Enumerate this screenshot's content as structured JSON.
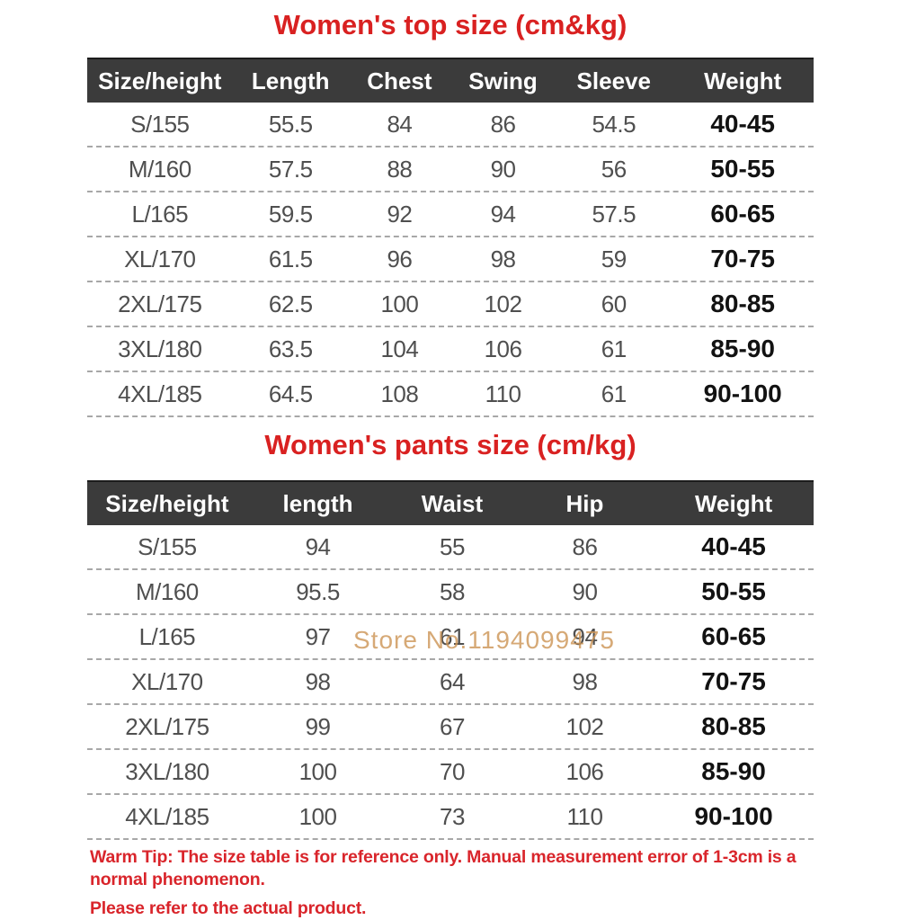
{
  "colors": {
    "title_red": "#d92121",
    "header_bg": "#3b3b3b",
    "header_text": "#ffffff",
    "data_text": "#4f4f4f",
    "weight_text": "#121212",
    "divider_gray": "#a8a8a8",
    "watermark_tan": "#cc9354",
    "warning_red": "#d9252b",
    "background": "#ffffff"
  },
  "tables": [
    {
      "title": "Women's top size (cm&kg)",
      "columns": [
        "Size/height",
        "Length",
        "Chest",
        "Swing",
        "Sleeve",
        "Weight"
      ],
      "rows": [
        [
          "S/155",
          "55.5",
          "84",
          "86",
          "54.5",
          "40-45"
        ],
        [
          "M/160",
          "57.5",
          "88",
          "90",
          "56",
          "50-55"
        ],
        [
          "L/165",
          "59.5",
          "92",
          "94",
          "57.5",
          "60-65"
        ],
        [
          "XL/170",
          "61.5",
          "96",
          "98",
          "59",
          "70-75"
        ],
        [
          "2XL/175",
          "62.5",
          "100",
          "102",
          "60",
          "80-85"
        ],
        [
          "3XL/180",
          "63.5",
          "104",
          "106",
          "61",
          "85-90"
        ],
        [
          "4XL/185",
          "64.5",
          "108",
          "110",
          "61",
          "90-100"
        ]
      ]
    },
    {
      "title": "Women's pants size (cm/kg)",
      "columns": [
        "Size/height",
        "length",
        "Waist",
        "Hip",
        "Weight"
      ],
      "rows": [
        [
          "S/155",
          "94",
          "55",
          "86",
          "40-45"
        ],
        [
          "M/160",
          "95.5",
          "58",
          "90",
          "50-55"
        ],
        [
          "L/165",
          "97",
          "61",
          "94",
          "60-65"
        ],
        [
          "XL/170",
          "98",
          "64",
          "98",
          "70-75"
        ],
        [
          "2XL/175",
          "99",
          "67",
          "102",
          "80-85"
        ],
        [
          "3XL/180",
          "100",
          "70",
          "106",
          "85-90"
        ],
        [
          "4XL/185",
          "100",
          "73",
          "110",
          "90-100"
        ]
      ]
    }
  ],
  "watermark": {
    "text": "Store No.1194099475"
  },
  "warning": {
    "line1": "Warm Tip: The size table is for reference only. Manual measurement error of 1-3cm is a normal phenomenon.",
    "line2": "Please refer to the actual product."
  }
}
